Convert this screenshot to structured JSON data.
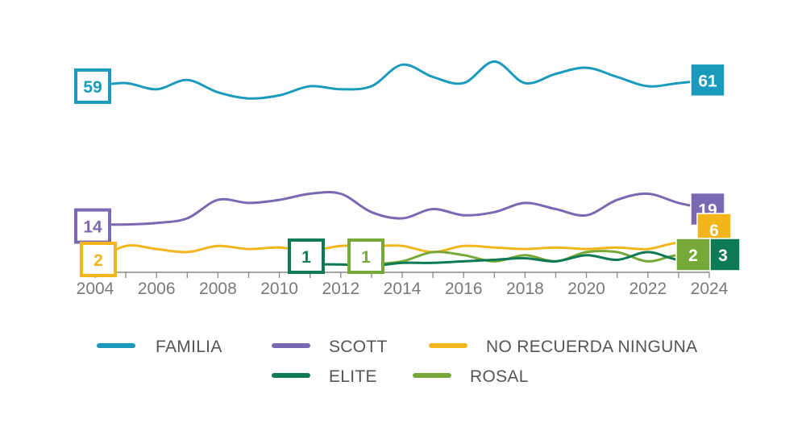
{
  "chart_data": {
    "type": "line",
    "title": "",
    "xlabel": "",
    "ylabel": "",
    "x_ticks": [
      "2004",
      "2006",
      "2008",
      "2010",
      "2012",
      "2014",
      "2016",
      "2018",
      "2020",
      "2022",
      "2024"
    ],
    "xlim": [
      2004,
      2024
    ],
    "ylim": [
      0,
      70
    ],
    "grid": false,
    "legend_position": "bottom",
    "series": [
      {
        "name": "FAMILIA",
        "color": "#1a9bbd",
        "x": [
          2004,
          2005,
          2006,
          2007,
          2008,
          2009,
          2010,
          2011,
          2012,
          2013,
          2014,
          2015,
          2016,
          2017,
          2018,
          2019,
          2020,
          2021,
          2022,
          2023,
          2024
        ],
        "values": [
          59,
          60,
          58,
          61,
          57,
          55,
          56,
          59,
          58,
          59,
          66,
          62,
          60,
          67,
          60,
          63,
          65,
          62,
          59,
          60,
          61
        ],
        "start_label": "59",
        "end_label": "61"
      },
      {
        "name": "SCOTT",
        "color": "#7b68b2",
        "x": [
          2004,
          2005,
          2006,
          2007,
          2008,
          2009,
          2010,
          2011,
          2012,
          2013,
          2014,
          2015,
          2016,
          2017,
          2018,
          2019,
          2020,
          2021,
          2022,
          2023,
          2024
        ],
        "values": [
          14,
          14,
          14.5,
          16,
          22,
          21,
          22,
          24,
          24,
          18,
          16,
          19,
          17,
          18,
          21,
          19,
          17,
          22,
          24,
          21,
          19
        ],
        "start_label": "14",
        "end_label": "19"
      },
      {
        "name": "NO RECUERDA NINGUNA",
        "color": "#f2b61c",
        "x": [
          2004,
          2005,
          2006,
          2007,
          2008,
          2009,
          2010,
          2011,
          2012,
          2013,
          2014,
          2015,
          2016,
          2017,
          2018,
          2019,
          2020,
          2021,
          2022,
          2023,
          2024
        ],
        "values": [
          2,
          7,
          6,
          5,
          7,
          6,
          6.5,
          5.5,
          7,
          7,
          7,
          5,
          7,
          6.5,
          6,
          6.5,
          6,
          6.5,
          6,
          8,
          6
        ],
        "start_label": "2",
        "end_label": "6"
      },
      {
        "name": "ELITE",
        "color": "#0e7a55",
        "x": [
          2011,
          2012,
          2013,
          2014,
          2015,
          2016,
          2017,
          2018,
          2019,
          2020,
          2021,
          2022,
          2023,
          2024
        ],
        "values": [
          1,
          1,
          0.5,
          1.5,
          1.5,
          2,
          2.5,
          3,
          2,
          4,
          2.5,
          5,
          2.5,
          3
        ],
        "start_label": "1",
        "end_label": "3"
      },
      {
        "name": "ROSAL",
        "color": "#76a937",
        "x": [
          2013,
          2014,
          2015,
          2016,
          2017,
          2018,
          2019,
          2020,
          2021,
          2022,
          2023,
          2024
        ],
        "values": [
          1,
          2,
          5,
          4,
          2,
          4,
          2,
          5,
          5,
          2,
          4,
          2
        ],
        "start_label": "1",
        "end_label": "2"
      }
    ]
  }
}
